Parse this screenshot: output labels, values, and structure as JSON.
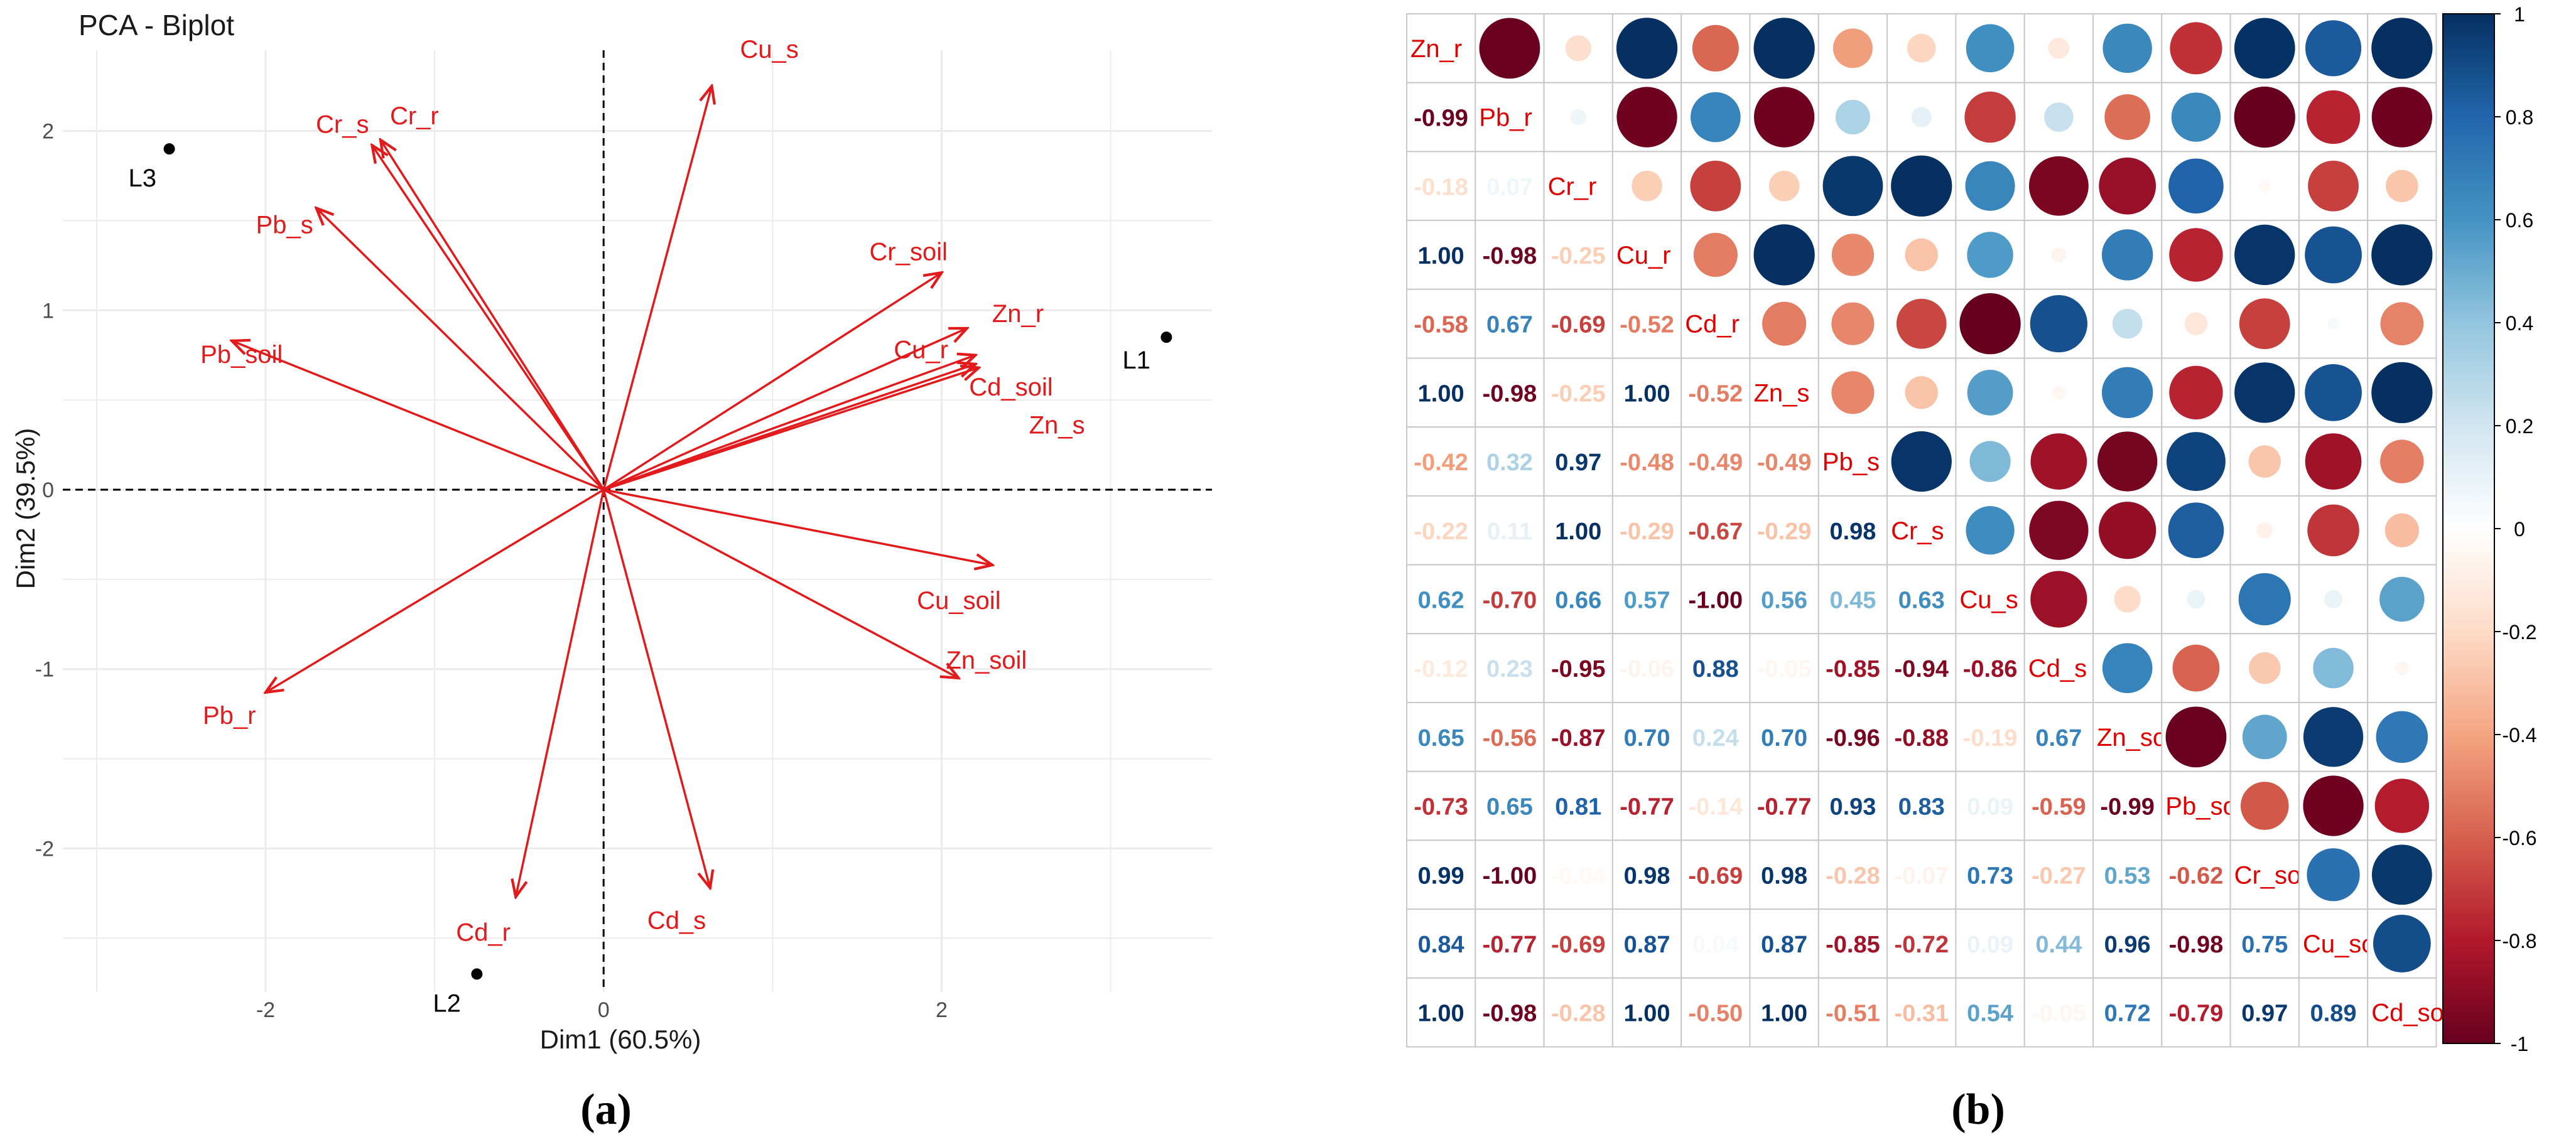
{
  "chart_data": [
    {
      "type": "scatter",
      "subtype": "pca-biplot",
      "panel_label": "(a)",
      "title": "PCA - Biplot",
      "xlabel": "Dim1 (60.5%)",
      "ylabel": "Dim2 (39.5%)",
      "xlim": [
        -3.2,
        3.6
      ],
      "ylim": [
        -2.8,
        2.45
      ],
      "x_ticks": [
        -2,
        0,
        2
      ],
      "y_ticks": [
        -2,
        -1,
        0,
        1,
        2
      ],
      "grid": true,
      "reference_lines": "dashed at x=0 and y=0",
      "points": [
        {
          "name": "L1",
          "x": 3.33,
          "y": 0.85
        },
        {
          "name": "L2",
          "x": -0.75,
          "y": -2.7
        },
        {
          "name": "L3",
          "x": -2.57,
          "y": 1.9
        }
      ],
      "vectors": [
        {
          "name": "Cu_s",
          "x": 0.64,
          "y": 2.25
        },
        {
          "name": "Cr_r",
          "x": -1.32,
          "y": 1.95
        },
        {
          "name": "Cr_s",
          "x": -1.37,
          "y": 1.92
        },
        {
          "name": "Pb_s",
          "x": -1.7,
          "y": 1.57
        },
        {
          "name": "Pb_soil",
          "x": -2.2,
          "y": 0.83
        },
        {
          "name": "Pb_r",
          "x": -2.0,
          "y": -1.13
        },
        {
          "name": "Cd_r",
          "x": -0.52,
          "y": -2.27
        },
        {
          "name": "Cd_s",
          "x": 0.63,
          "y": -2.22
        },
        {
          "name": "Cr_soil",
          "x": 2.0,
          "y": 1.21
        },
        {
          "name": "Zn_r",
          "x": 2.15,
          "y": 0.9
        },
        {
          "name": "Cu_r",
          "x": 2.2,
          "y": 0.75
        },
        {
          "name": "Cd_soil",
          "x": 2.2,
          "y": 0.7
        },
        {
          "name": "Zn_s",
          "x": 2.22,
          "y": 0.68
        },
        {
          "name": "Cu_soil",
          "x": 2.3,
          "y": -0.42
        },
        {
          "name": "Zn_soil",
          "x": 2.1,
          "y": -1.05
        }
      ]
    },
    {
      "type": "heatmap",
      "subtype": "correlation-matrix",
      "panel_label": "(b)",
      "variables": [
        "Zn_r",
        "Pb_r",
        "Cr_r",
        "Cu_r",
        "Cd_r",
        "Zn_s",
        "Pb_s",
        "Cr_s",
        "Cu_s",
        "Cd_s",
        "Zn_soil",
        "Pb_soil",
        "Cr_soil",
        "Cu_soil",
        "Cd_soil"
      ],
      "lower_triangle": [
        [],
        [
          -0.99
        ],
        [
          -0.18,
          0.07
        ],
        [
          1.0,
          -0.98,
          -0.25
        ],
        [
          -0.58,
          0.67,
          -0.69,
          -0.52
        ],
        [
          1.0,
          -0.98,
          -0.25,
          1.0,
          -0.52
        ],
        [
          -0.42,
          0.32,
          0.97,
          -0.48,
          -0.49,
          -0.49
        ],
        [
          -0.22,
          0.11,
          1.0,
          -0.29,
          -0.67,
          -0.29,
          0.98
        ],
        [
          0.62,
          -0.7,
          0.66,
          0.57,
          -1.0,
          0.56,
          0.45,
          0.63
        ],
        [
          -0.12,
          0.23,
          -0.95,
          -0.06,
          0.88,
          -0.05,
          -0.85,
          -0.94,
          -0.86
        ],
        [
          0.65,
          -0.56,
          -0.87,
          0.7,
          0.24,
          0.7,
          -0.96,
          -0.88,
          -0.19,
          0.67
        ],
        [
          -0.73,
          0.65,
          0.81,
          -0.77,
          -0.14,
          -0.77,
          0.93,
          0.83,
          0.09,
          -0.59,
          -0.99
        ],
        [
          0.99,
          -1.0,
          -0.04,
          0.98,
          -0.69,
          0.98,
          -0.28,
          -0.07,
          0.73,
          -0.27,
          0.53,
          -0.62
        ],
        [
          0.84,
          -0.77,
          -0.69,
          0.87,
          0.04,
          0.87,
          -0.85,
          -0.72,
          0.09,
          0.44,
          0.96,
          -0.98,
          0.75
        ],
        [
          1.0,
          -0.98,
          -0.28,
          1.0,
          -0.5,
          1.0,
          -0.51,
          -0.31,
          0.54,
          -0.05,
          0.72,
          -0.79,
          0.97,
          0.89
        ]
      ],
      "colorbar": {
        "min": -1,
        "max": 1,
        "ticks": [
          1,
          0.8,
          0.6,
          0.4,
          0.2,
          0,
          -0.2,
          -0.4,
          -0.6,
          -0.8,
          -1
        ]
      },
      "colors": {
        "negative": "#67001F",
        "neutral": "#FFFFFF",
        "positive": "#053061"
      }
    }
  ],
  "styles": {
    "vector_color": "#E31A1C",
    "point_color": "#000000",
    "grid_color": "#EBEBEB",
    "cell_border": "#C8C8C8"
  }
}
